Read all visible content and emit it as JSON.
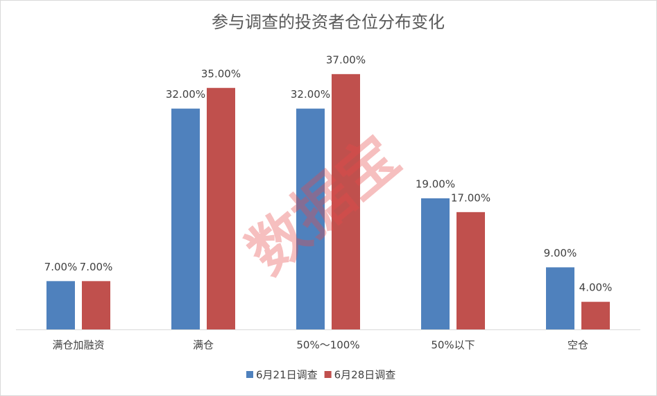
{
  "chart_data": {
    "type": "bar",
    "title": "参与调查的投资者仓位分布变化",
    "categories": [
      "满仓加融资",
      "满仓",
      "50%～100%",
      "50%以下",
      "空仓"
    ],
    "series": [
      {
        "name": "6月21日调查",
        "color": "#4f81bd",
        "values": [
          7,
          32,
          32,
          19,
          9
        ],
        "value_labels": [
          "7.00%",
          "32.00%",
          "32.00%",
          "19.00%",
          "9.00%"
        ]
      },
      {
        "name": "6月28日调查",
        "color": "#c0504d",
        "values": [
          7,
          35,
          37,
          17,
          4
        ],
        "value_labels": [
          "7.00%",
          "35.00%",
          "37.00%",
          "17.00%",
          "4.00%"
        ]
      }
    ],
    "ylim": [
      0,
      40
    ],
    "watermark": "数据宝"
  }
}
